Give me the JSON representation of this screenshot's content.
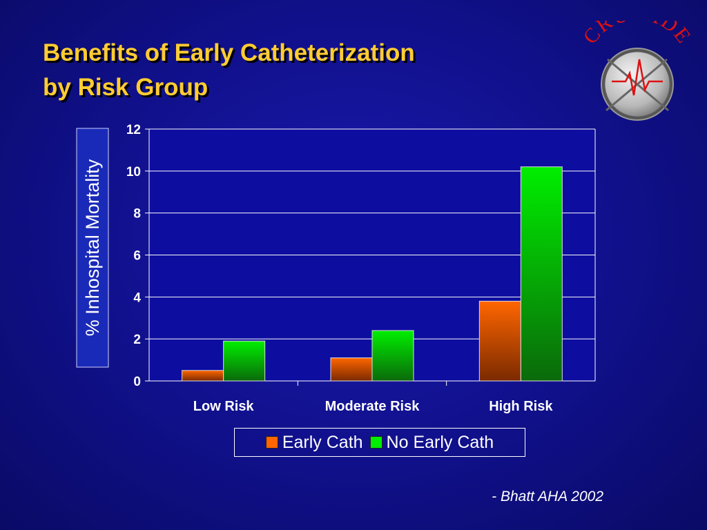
{
  "slide": {
    "title_line1": "Benefits of Early Catheterization",
    "title_line2": "by Risk Group",
    "source": "- Bhatt AHA 2002"
  },
  "logo": {
    "text": "CRUSADE",
    "icon": "crusade-shield-emblem"
  },
  "colors": {
    "background": "#10108a",
    "title": "#ffcc33",
    "early_cath": "#ff6600",
    "no_early_cath": "#00ee00",
    "ylabel_box": "#1a2ab8"
  },
  "chart_data": {
    "type": "bar",
    "categories": [
      "Low Risk",
      "Moderate Risk",
      "High Risk"
    ],
    "series": [
      {
        "name": "Early Cath",
        "values": [
          0.5,
          1.1,
          3.8
        ],
        "color": "#ff6600"
      },
      {
        "name": "No Early Cath",
        "values": [
          1.9,
          2.4,
          10.2
        ],
        "color": "#00ee00"
      }
    ],
    "ylabel": "% Inhospital Mortality",
    "xlabel": "",
    "ylim": [
      0,
      12
    ],
    "yticks": [
      0,
      2,
      4,
      6,
      8,
      10,
      12
    ],
    "grid": true,
    "legend": "bottom"
  }
}
